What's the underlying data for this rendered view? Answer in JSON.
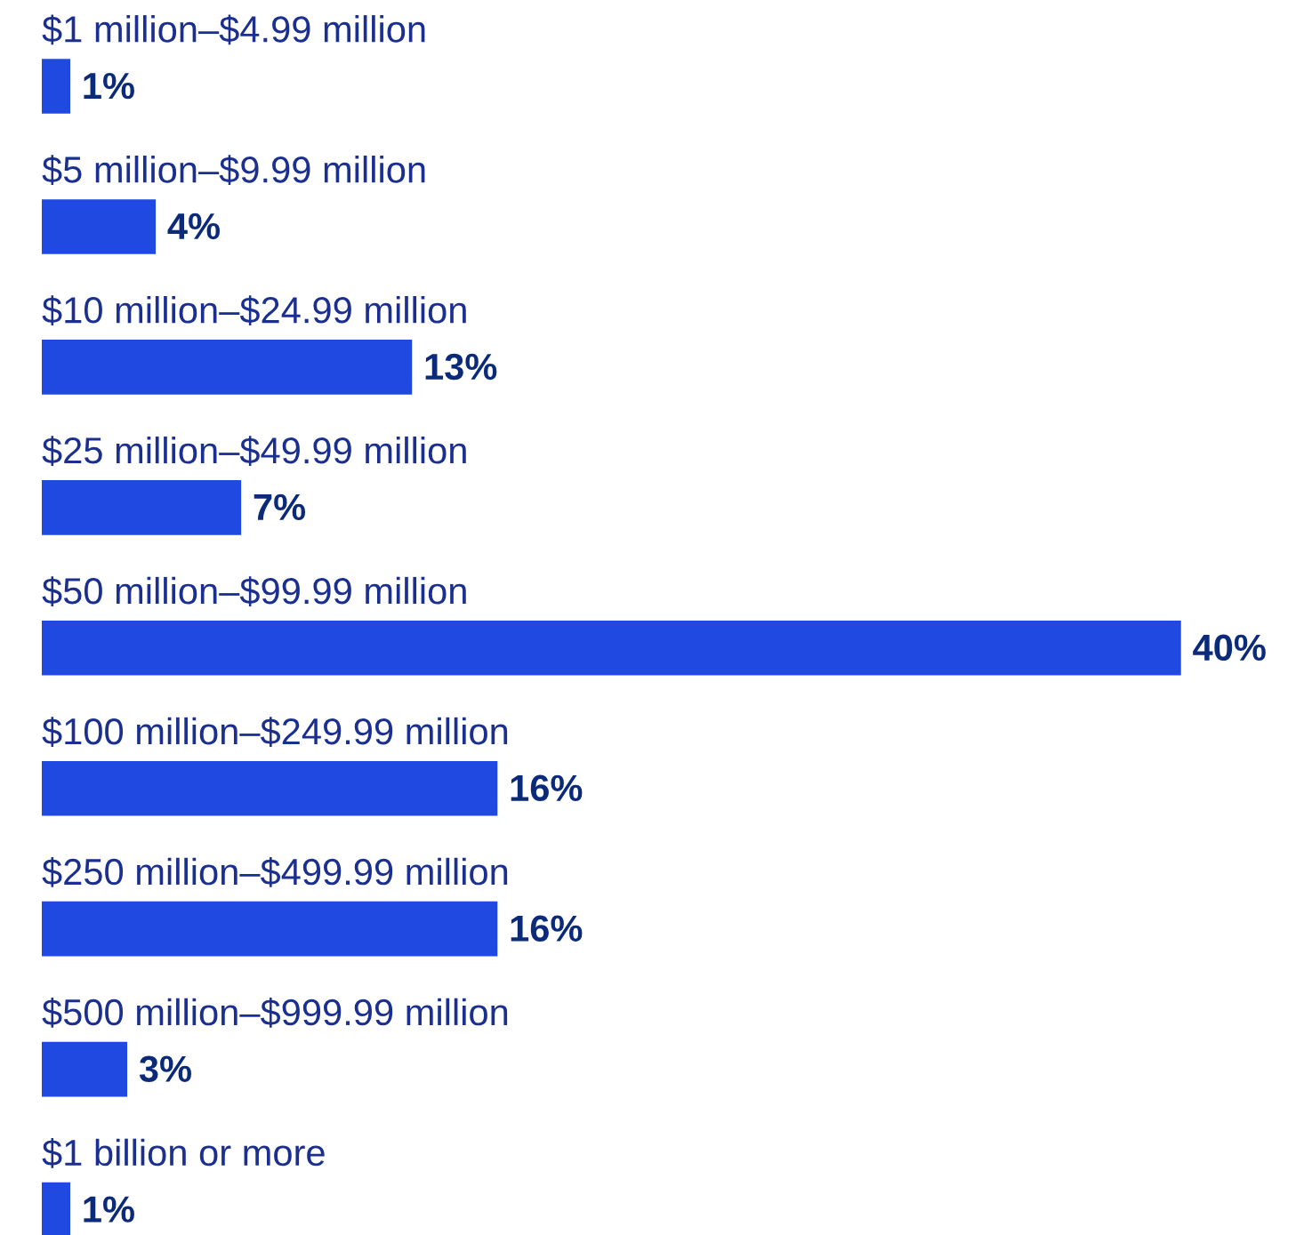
{
  "chart_data": {
    "type": "bar",
    "orientation": "horizontal",
    "categories": [
      "$1 million–$4.99 million",
      "$5 million–$9.99 million",
      "$10 million–$24.99 million",
      "$25 million–$49.99 million",
      "$50 million–$99.99 million",
      "$100 million–$249.99 million",
      "$250 million–$499.99 million",
      "$500 million–$999.99 million",
      "$1 billion or more"
    ],
    "values": [
      1,
      4,
      13,
      7,
      40,
      16,
      16,
      3,
      1
    ],
    "value_labels": [
      "1%",
      "4%",
      "13%",
      "7%",
      "40%",
      "16%",
      "16%",
      "3%",
      "1%"
    ],
    "color": "#1f49e0"
  }
}
